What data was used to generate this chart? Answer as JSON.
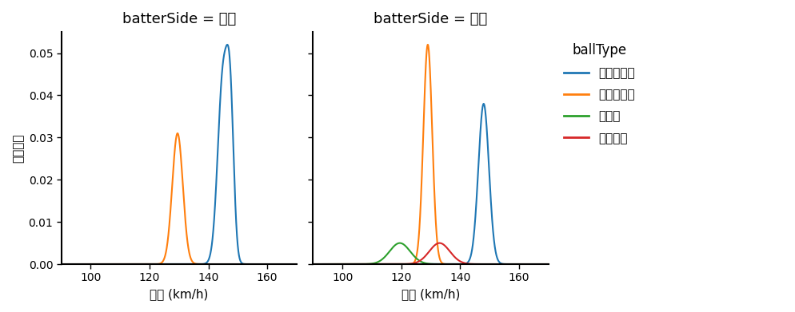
{
  "title_left": "batterSide = 右打",
  "title_right": "batterSide = 左打",
  "ylabel": "確率密度",
  "xlabel": "球速 (km/h)",
  "legend_title": "ballType",
  "legend_items": [
    "ストレート",
    "スライダー",
    "カーブ",
    "シンカー"
  ],
  "colors": {
    "ストレート": "#1f77b4",
    "スライダー": "#ff7f0e",
    "カーブ": "#2ca02c",
    "シンカー": "#d62728"
  },
  "xlim": [
    90,
    170
  ],
  "ylim": [
    0,
    0.055
  ],
  "xticks": [
    100,
    120,
    140,
    160
  ],
  "yticks": [
    0.0,
    0.01,
    0.02,
    0.03,
    0.04,
    0.05
  ],
  "right_batter": {
    "ストレート": [
      {
        "mean": 145.0,
        "std": 1.8,
        "amp": 0.7
      },
      {
        "mean": 147.5,
        "std": 1.2,
        "amp": 0.3
      }
    ],
    "スライダー": [
      {
        "mean": 129.5,
        "std": 1.8,
        "amp": 1.0
      }
    ],
    "カーブ": null,
    "シンカー": null
  },
  "left_batter": {
    "ストレート": [
      {
        "mean": 148.0,
        "std": 1.8,
        "amp": 1.0
      }
    ],
    "スライダー": [
      {
        "mean": 129.0,
        "std": 1.5,
        "amp": 1.0
      }
    ],
    "カーブ": [
      {
        "mean": 119.5,
        "std": 3.5,
        "amp": 1.0
      }
    ],
    "シンカー": [
      {
        "mean": 133.0,
        "std": 3.5,
        "amp": 1.0
      }
    ]
  },
  "peak_targets": {
    "right_batter": {
      "ストレート": 0.052,
      "スライダー": 0.031
    },
    "left_batter": {
      "ストレート": 0.038,
      "スライダー": 0.052,
      "カーブ": 0.005,
      "シンカー": 0.005
    }
  },
  "figsize": [
    9.95,
    3.91
  ],
  "dpi": 100
}
